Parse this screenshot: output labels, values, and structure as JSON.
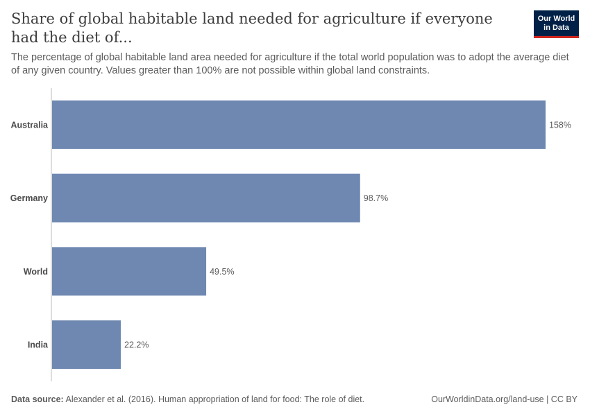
{
  "header": {
    "title": "Share of global habitable land needed for agriculture if everyone had the diet of...",
    "subtitle": "The percentage of global habitable land area needed for agriculture if the total world population was to adopt the average diet of any given country. Values greater than 100% are not possible within global land constraints.",
    "logo_line1": "Our World",
    "logo_line2": "in Data"
  },
  "chart_data": {
    "type": "bar",
    "orientation": "horizontal",
    "categories": [
      "Australia",
      "Germany",
      "World",
      "India"
    ],
    "values": [
      158,
      98.7,
      49.5,
      22.2
    ],
    "value_labels": [
      "158%",
      "98.7%",
      "49.5%",
      "22.2%"
    ],
    "unit": "%",
    "xlim": [
      0,
      158
    ],
    "grid": false,
    "bar_color": "#6f88b1"
  },
  "footer": {
    "source_label": "Data source:",
    "source_text": "Alexander et al. (2016). Human appropriation of land for food: The role of diet.",
    "url": "OurWorldinData.org/land-use | CC BY"
  }
}
